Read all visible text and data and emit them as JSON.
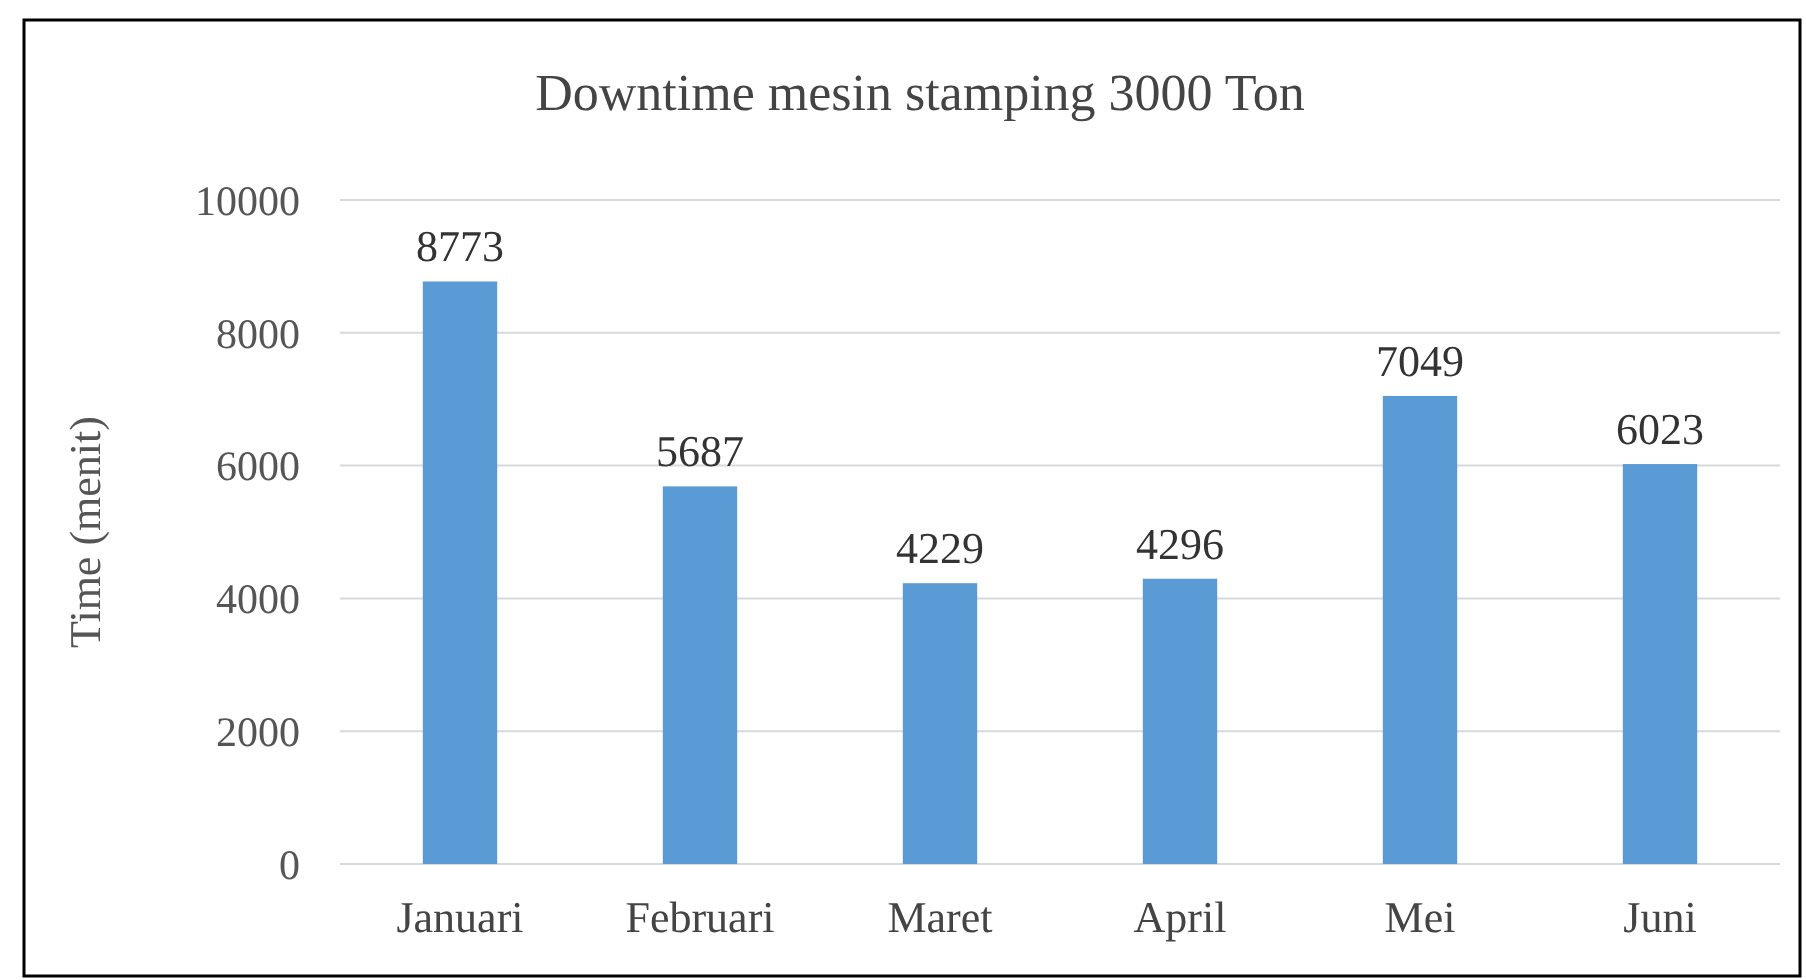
{
  "chart_data": {
    "type": "bar",
    "title": "Downtime mesin stamping 3000 Ton",
    "ylabel": "Time (menit)",
    "categories": [
      "Januari",
      "Februari",
      "Maret",
      "April",
      "Mei",
      "Juni"
    ],
    "values": [
      8773,
      5687,
      4229,
      4296,
      7049,
      6023
    ],
    "color": "#5b9bd5",
    "ylim": [
      0,
      10000
    ],
    "yticks": [
      0,
      2000,
      4000,
      6000,
      8000,
      10000
    ],
    "grid": "y",
    "data_labels": true
  }
}
